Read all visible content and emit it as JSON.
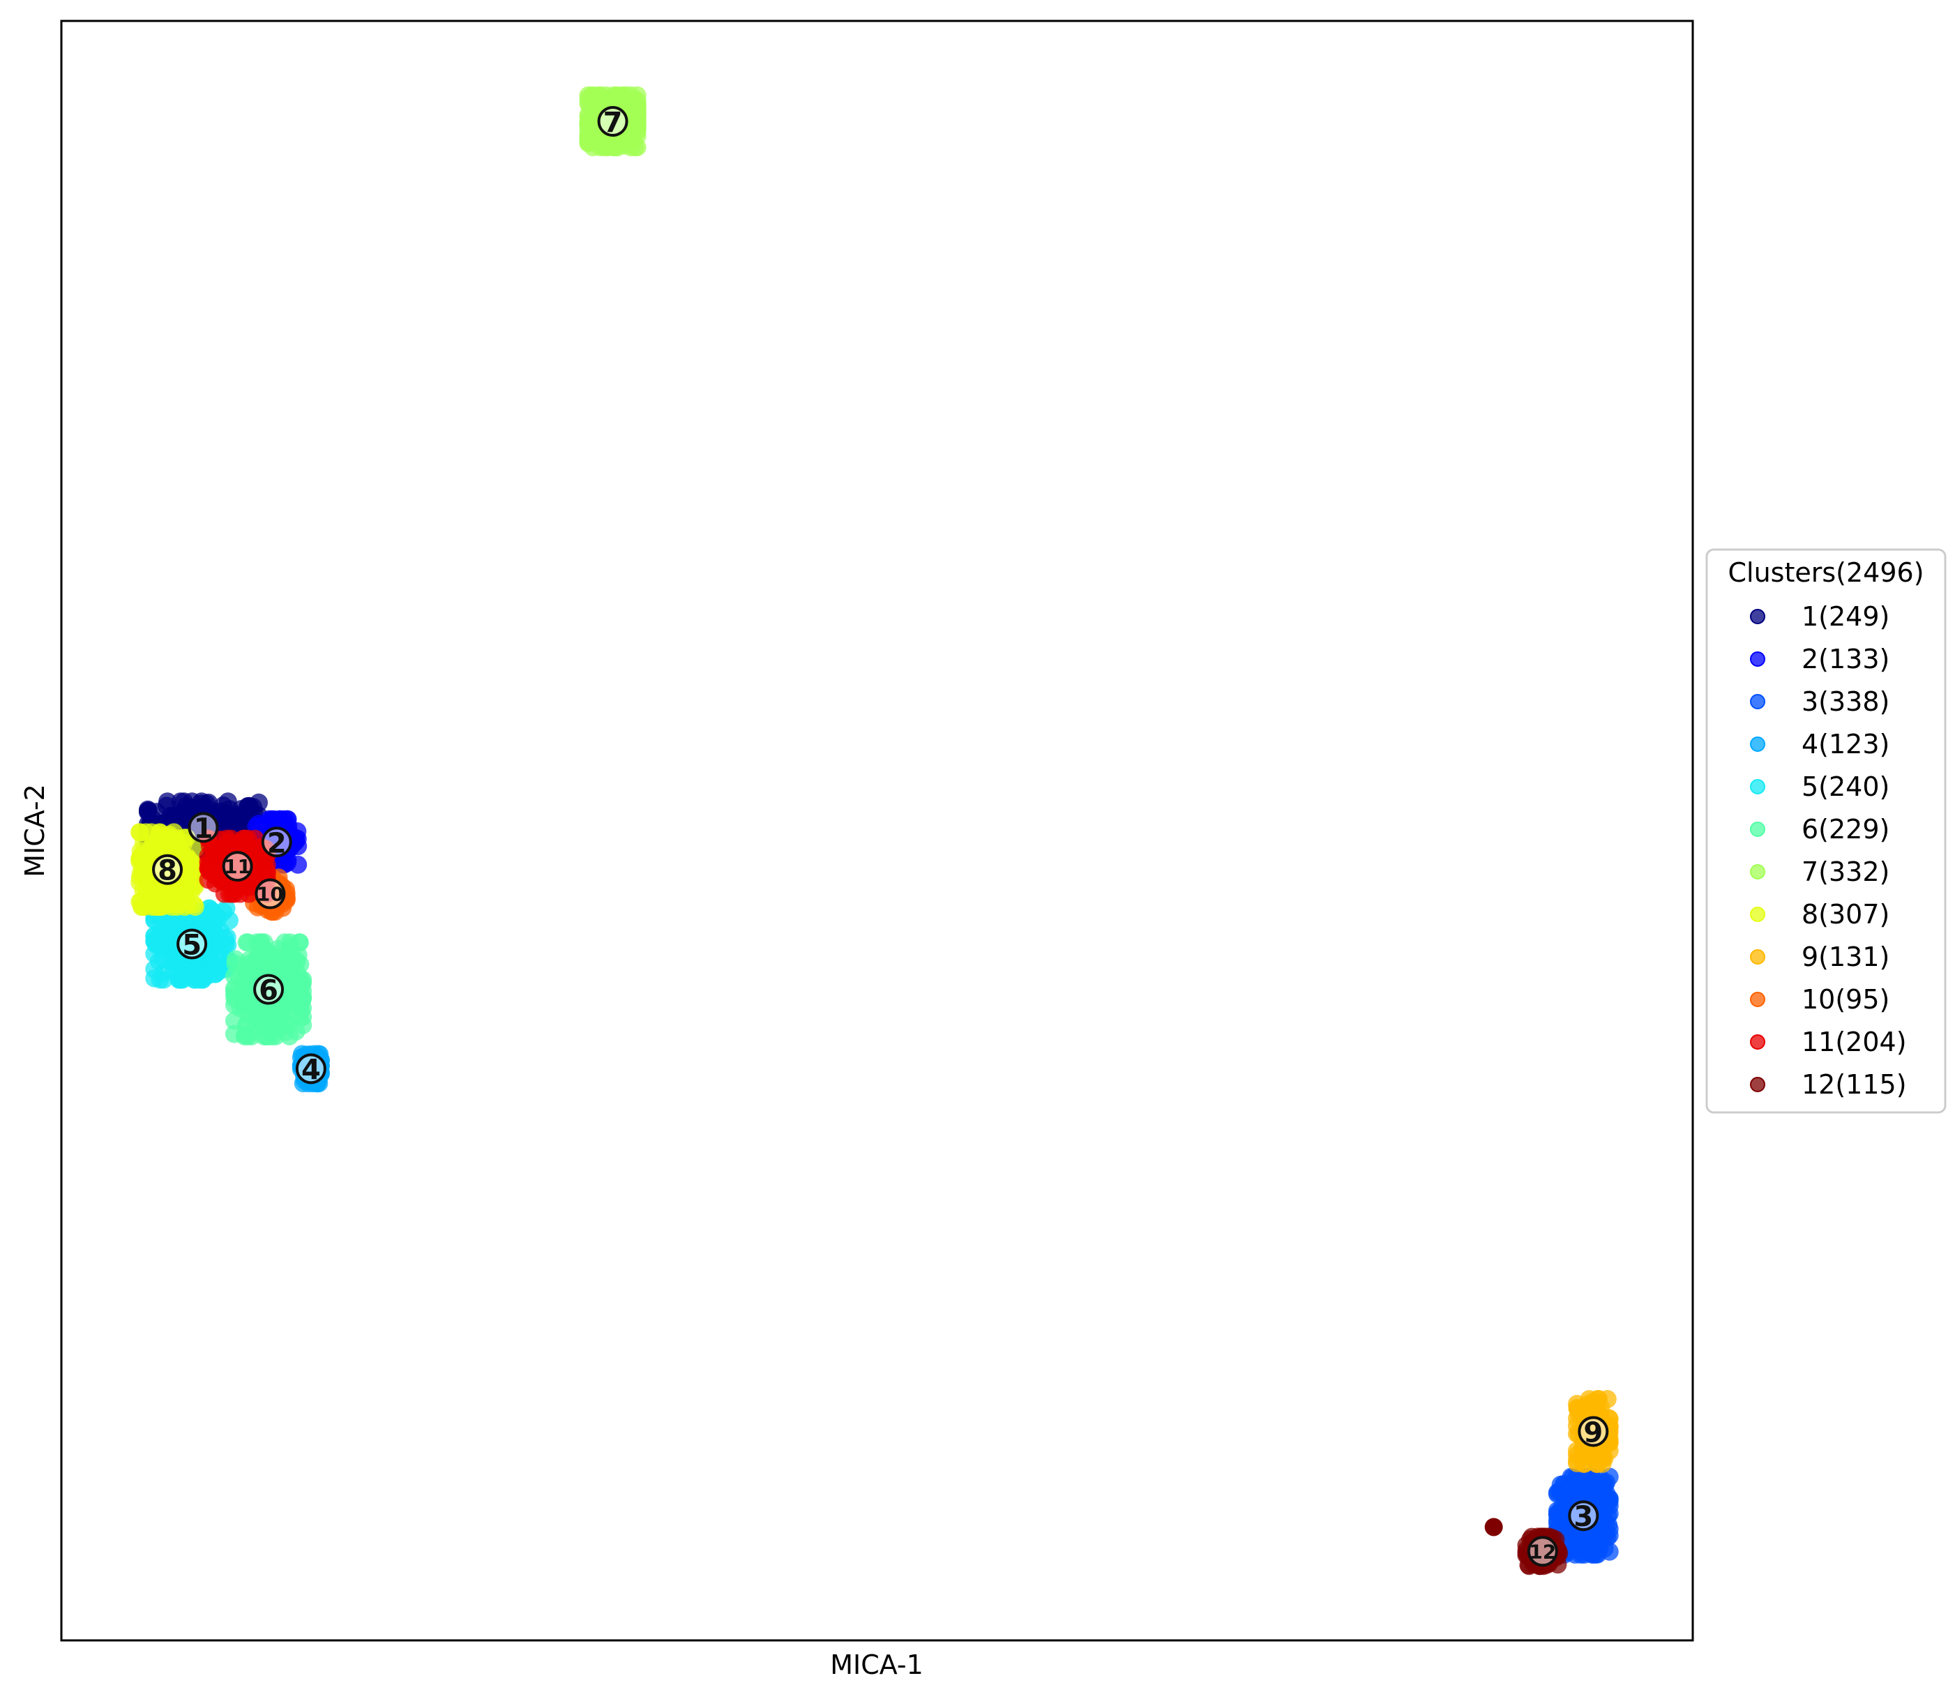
{
  "chart_data": {
    "type": "scatter",
    "title": "",
    "xlabel": "MICA-1",
    "ylabel": "MICA-2",
    "xlim": [
      0,
      100
    ],
    "ylim": [
      0,
      100
    ],
    "x_ticks": "none",
    "y_ticks": "none",
    "grid": false,
    "legend": {
      "title": "Clusters(2496)",
      "placement": "center-right outside"
    },
    "series": [
      {
        "name": "1(249)",
        "cluster": "1",
        "color": "#00007f",
        "count": 249,
        "centroid": [
          8.7,
          50.2
        ],
        "spread": [
          3.4,
          1.6
        ]
      },
      {
        "name": "2(133)",
        "cluster": "2",
        "color": "#0000ff",
        "count": 133,
        "centroid": [
          13.2,
          49.3
        ],
        "spread": [
          1.3,
          1.4
        ]
      },
      {
        "name": "3(338)",
        "cluster": "3",
        "color": "#0050ff",
        "count": 338,
        "centroid": [
          93.3,
          7.7
        ],
        "spread": [
          1.6,
          2.4
        ]
      },
      {
        "name": "4(123)",
        "cluster": "4",
        "color": "#00a8ff",
        "count": 123,
        "centroid": [
          15.3,
          35.3
        ],
        "spread": [
          0.6,
          0.9
        ]
      },
      {
        "name": "5(240)",
        "cluster": "5",
        "color": "#15eaf4",
        "count": 240,
        "centroid": [
          8.0,
          43.0
        ],
        "spread": [
          2.3,
          2.2
        ]
      },
      {
        "name": "6(229)",
        "cluster": "6",
        "color": "#51ffa6",
        "count": 229,
        "centroid": [
          12.7,
          40.2
        ],
        "spread": [
          2.1,
          2.9
        ]
      },
      {
        "name": "7(332)",
        "cluster": "7",
        "color": "#a3ff54",
        "count": 332,
        "centroid": [
          33.8,
          93.8
        ],
        "spread": [
          1.5,
          1.6
        ]
      },
      {
        "name": "8(307)",
        "cluster": "8",
        "color": "#e4ff13",
        "count": 307,
        "centroid": [
          6.5,
          47.6
        ],
        "spread": [
          1.7,
          2.3
        ]
      },
      {
        "name": "9(131)",
        "cluster": "9",
        "color": "#ffb800",
        "count": 131,
        "centroid": [
          93.9,
          12.9
        ],
        "spread": [
          1.0,
          2.0
        ]
      },
      {
        "name": "10(95)",
        "cluster": "10",
        "color": "#ff6100",
        "count": 95,
        "centroid": [
          12.8,
          46.1
        ],
        "spread": [
          1.0,
          1.1
        ]
      },
      {
        "name": "11(204)",
        "cluster": "11",
        "color": "#e80000",
        "count": 204,
        "centroid": [
          10.8,
          47.8
        ],
        "spread": [
          1.8,
          1.7
        ]
      },
      {
        "name": "12(115)",
        "cluster": "12",
        "color": "#7f0000",
        "count": 115,
        "centroid": [
          90.8,
          5.5
        ],
        "spread": [
          1.0,
          0.9
        ]
      }
    ]
  }
}
